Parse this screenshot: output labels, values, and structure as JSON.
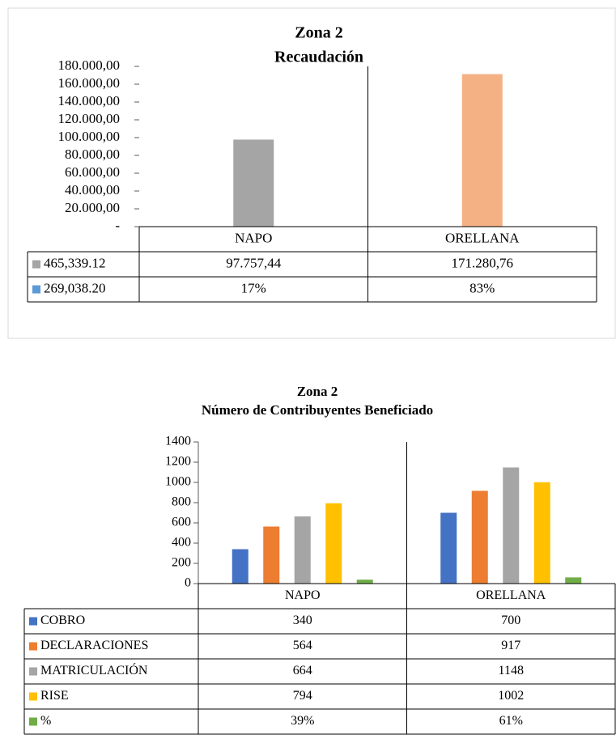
{
  "chart_data": [
    {
      "type": "bar",
      "title": "Zona 2",
      "subtitle": "Recaudación",
      "categories": [
        "NAPO",
        "ORELLANA"
      ],
      "series": [
        {
          "name": "465,339.12",
          "color": "#a5a5a5",
          "colors": [
            "#a5a5a5",
            "#f4b183"
          ],
          "values": [
            97757.44,
            171280.76
          ],
          "value_labels": [
            "97.757,44",
            "171.280,76"
          ]
        },
        {
          "name": "269,038.20",
          "color": "#5b9bd5",
          "values": [
            17,
            83
          ],
          "value_labels": [
            "17%",
            "83%"
          ]
        }
      ],
      "ylim": [
        0,
        180000
      ],
      "yticks": [
        {
          "value": 0,
          "label": "-"
        },
        {
          "value": 20000,
          "label": "20.000,00"
        },
        {
          "value": 40000,
          "label": "40.000,00"
        },
        {
          "value": 60000,
          "label": "60.000,00"
        },
        {
          "value": 80000,
          "label": "80.000,00"
        },
        {
          "value": 100000,
          "label": "100.000,00"
        },
        {
          "value": 120000,
          "label": "120.000,00"
        },
        {
          "value": 140000,
          "label": "140.000,00"
        },
        {
          "value": 160000,
          "label": "160.000,00"
        },
        {
          "value": 180000,
          "label": "180.000,00"
        }
      ]
    },
    {
      "type": "bar",
      "title": "Zona 2",
      "subtitle": "Número de Contribuyentes Beneficiado",
      "categories": [
        "NAPO",
        "ORELLANA"
      ],
      "series": [
        {
          "name": "COBRO",
          "color": "#4472c4",
          "values": [
            340,
            700
          ]
        },
        {
          "name": "DECLARACIONES",
          "color": "#ed7d31",
          "values": [
            564,
            917
          ]
        },
        {
          "name": "MATRICULACIÓN",
          "color": "#a5a5a5",
          "values": [
            664,
            1148
          ]
        },
        {
          "name": "RISE",
          "color": "#ffc000",
          "values": [
            794,
            1002
          ]
        },
        {
          "name": "%",
          "color": "#70ad47",
          "values": [
            39,
            61
          ],
          "value_labels": [
            "39%",
            "61%"
          ]
        }
      ],
      "ylim": [
        0,
        1400
      ],
      "yticks": [
        0,
        200,
        400,
        600,
        800,
        1000,
        1200,
        1400
      ]
    }
  ]
}
